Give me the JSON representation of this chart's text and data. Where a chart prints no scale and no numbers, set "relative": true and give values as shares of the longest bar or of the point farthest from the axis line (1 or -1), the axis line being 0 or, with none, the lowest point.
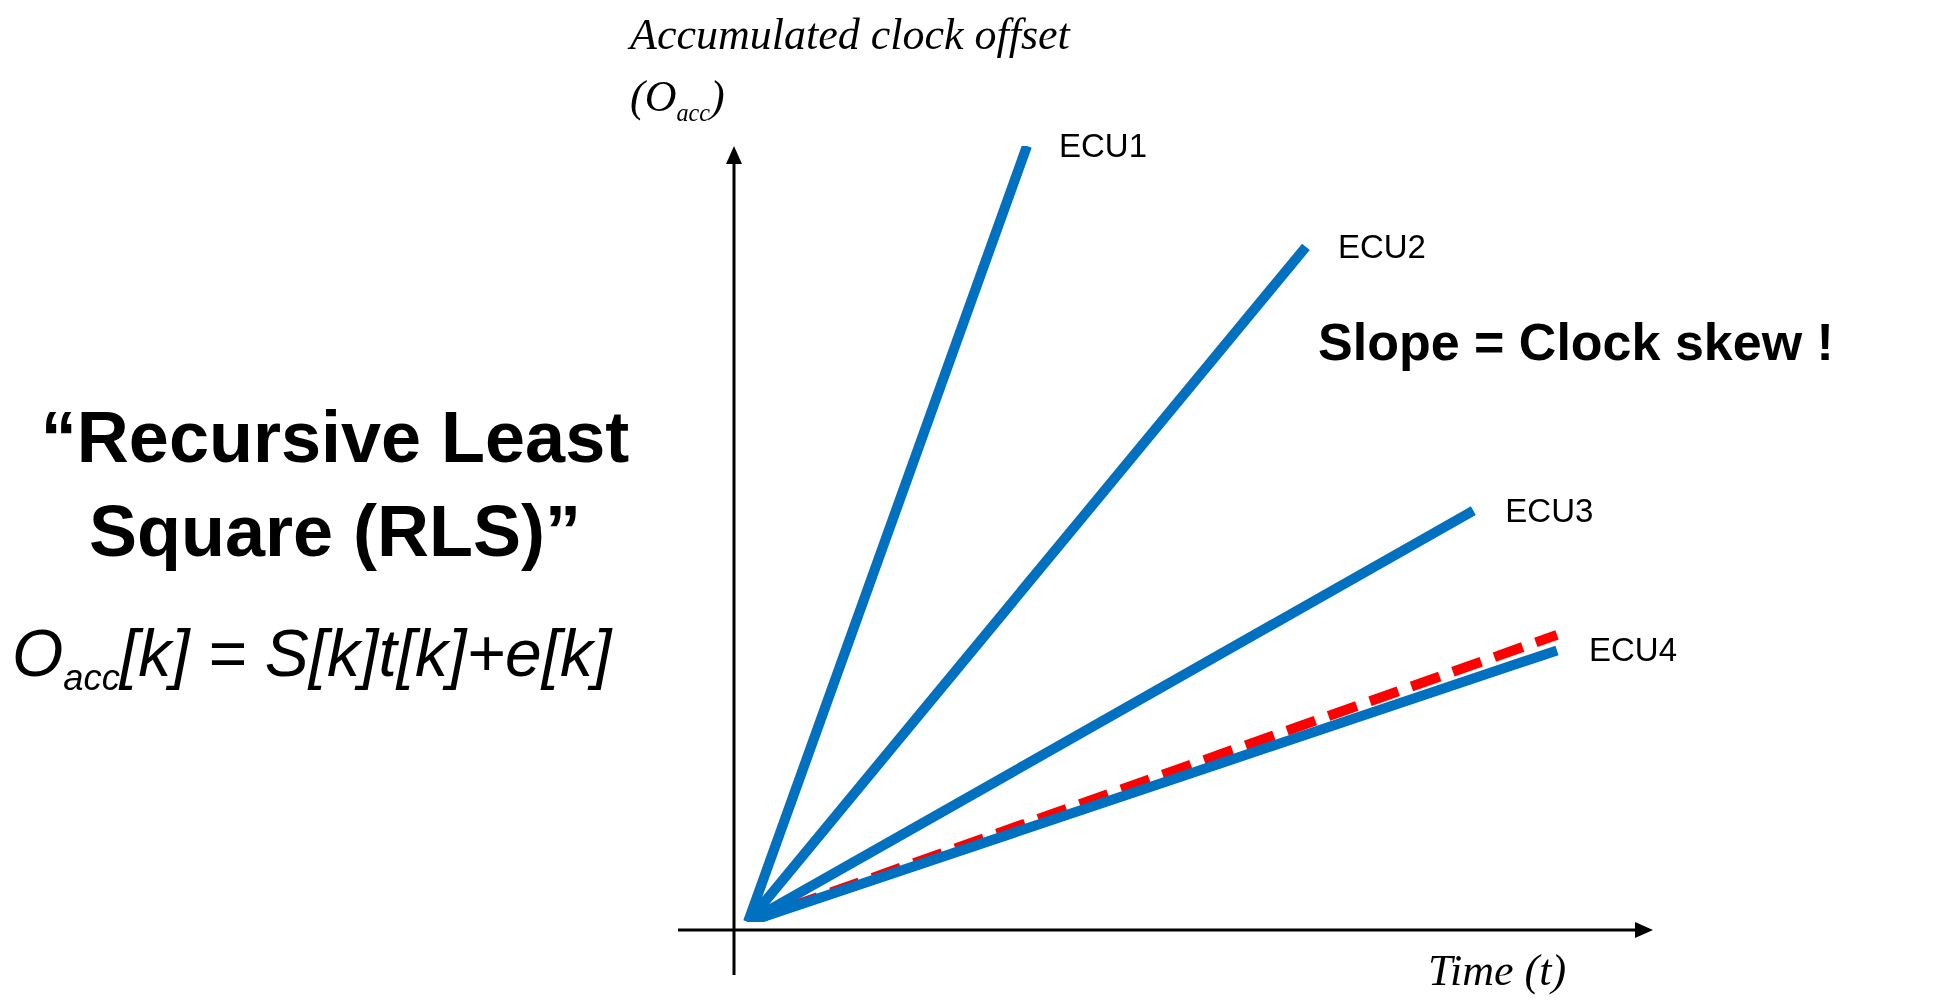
{
  "chart_data": {
    "type": "line",
    "relative": true,
    "ylabel": "Accumulated clock offset (O$_{acc}$)",
    "xlabel": "Time (t)",
    "grid": false,
    "legend": false,
    "marker": "none",
    "categories": [
      null,
      null,
      null,
      null,
      null,
      null,
      null,
      null,
      null,
      null,
      null,
      null,
      null,
      null,
      null,
      null,
      null,
      null,
      null,
      null,
      null,
      null,
      null,
      null,
      null,
      null,
      null,
      null,
      null,
      null
    ],
    "series": [
      {
        "name": "ECU1",
        "color": "#0070c0",
        "values": [
          0,
          null,
          null,
          null,
          null,
          null,
          null,
          null,
          null,
          null,
          1,
          null,
          null,
          null,
          null,
          null,
          null,
          null,
          null,
          null,
          null,
          null,
          null,
          null,
          null,
          null,
          null,
          null,
          null,
          null
        ]
      },
      {
        "name": "ECU2",
        "color": "#0070c0",
        "values": [
          0,
          null,
          null,
          null,
          null,
          null,
          null,
          null,
          null,
          null,
          null,
          null,
          null,
          null,
          null,
          null,
          null,
          null,
          null,
          null,
          0.87,
          null,
          null,
          null,
          null,
          null,
          null,
          null,
          null,
          null
        ]
      },
      {
        "name": "ECU3",
        "color": "#0070c0",
        "values": [
          0,
          null,
          null,
          null,
          null,
          null,
          null,
          null,
          null,
          null,
          null,
          null,
          null,
          null,
          null,
          null,
          null,
          null,
          null,
          null,
          null,
          null,
          null,
          null,
          null,
          null,
          0.53,
          null,
          null,
          null
        ]
      },
      {
        "name": "ECU4",
        "color": "#0070c0",
        "values": [
          0,
          null,
          null,
          null,
          null,
          null,
          null,
          null,
          null,
          null,
          null,
          null,
          null,
          null,
          null,
          null,
          null,
          null,
          null,
          null,
          null,
          null,
          null,
          null,
          null,
          null,
          null,
          null,
          null,
          0.35
        ]
      },
      {
        "color": "#ff0000",
        "values": [
          0,
          null,
          null,
          null,
          null,
          null,
          null,
          null,
          null,
          null,
          null,
          null,
          null,
          null,
          null,
          null,
          null,
          null,
          null,
          null,
          null,
          null,
          null,
          null,
          null,
          null,
          null,
          null,
          null,
          0.37
        ],
        "line_style": "dashed"
      }
    ],
    "annotations": [
      "“Recursive Least Square (RLS)”",
      "O$_{acc}$[k] = S[k]t[k]+e[k]",
      "Slope = Clock skew !"
    ]
  }
}
